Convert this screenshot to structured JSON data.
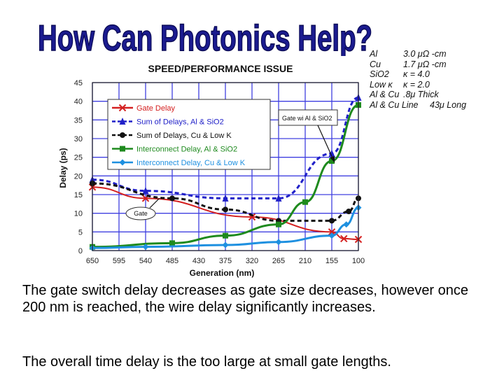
{
  "slide": {
    "title": "How Can Photonics Help?",
    "caption_1": "The gate switch delay decreases as gate size decreases, however once 200 nm is reached, the wire delay significantly increases.",
    "caption_2": "The overall time delay is the too large at small gate lengths."
  },
  "materials": [
    {
      "name": "Al",
      "value": "3.0 μΩ -cm"
    },
    {
      "name": "Cu",
      "value": "1.7 μΩ -cm"
    },
    {
      "name": "SiO2",
      "value": "κ = 4.0"
    },
    {
      "name": "Low κ",
      "value": "κ = 2.0"
    },
    {
      "name": "Al & Cu",
      "value": ".8μ Thick"
    },
    {
      "name": "Al & Cu Line",
      "value": "43μ Long"
    }
  ],
  "chart_data": {
    "type": "line",
    "title": "SPEED/PERFORMANCE ISSUE",
    "xlabel": "Generation (nm)",
    "ylabel": "Delay (ps)",
    "x_ticks": [
      "650",
      "595",
      "540",
      "485",
      "430",
      "375",
      "320",
      "265",
      "210",
      "155",
      "100"
    ],
    "ylim": [
      0,
      45
    ],
    "y_ticks": [
      "0",
      "5",
      "10",
      "15",
      "20",
      "25",
      "30",
      "35",
      "40",
      "45"
    ],
    "grid": true,
    "legend_position": "top-left",
    "annotations": [
      "Gate wi Al & SiO2",
      "Gate"
    ],
    "series": [
      {
        "name": "Gate Delay",
        "color": "#d42020",
        "marker": "x",
        "x": [
          650,
          540,
          320,
          155,
          130,
          100
        ],
        "y": [
          17,
          14,
          9,
          5,
          3.2,
          3
        ]
      },
      {
        "name": "Sum of Delays, Al & SiO2",
        "color": "#2020c8",
        "marker": "triangle",
        "x": [
          650,
          540,
          375,
          265,
          155,
          100
        ],
        "y": [
          19,
          16,
          14,
          14,
          26,
          41
        ]
      },
      {
        "name": "Sum of Delays, Cu & Low K",
        "color": "#111111",
        "marker": "circle",
        "x": [
          650,
          485,
          375,
          265,
          155,
          120,
          100
        ],
        "y": [
          18,
          14,
          11,
          8,
          8,
          10.5,
          14
        ]
      },
      {
        "name": "Interconnect Delay, Al & SiO2",
        "color": "#1e8a1e",
        "marker": "square",
        "x": [
          650,
          485,
          375,
          265,
          210,
          155,
          100
        ],
        "y": [
          1,
          2,
          4,
          7,
          13,
          24,
          39
        ]
      },
      {
        "name": "Interconnect Delay, Cu & Low K",
        "color": "#1e90e0",
        "marker": "diamond",
        "x": [
          650,
          540,
          375,
          265,
          155,
          125,
          100
        ],
        "y": [
          0.7,
          1,
          1.5,
          2.3,
          4,
          7,
          11.5
        ]
      }
    ]
  }
}
